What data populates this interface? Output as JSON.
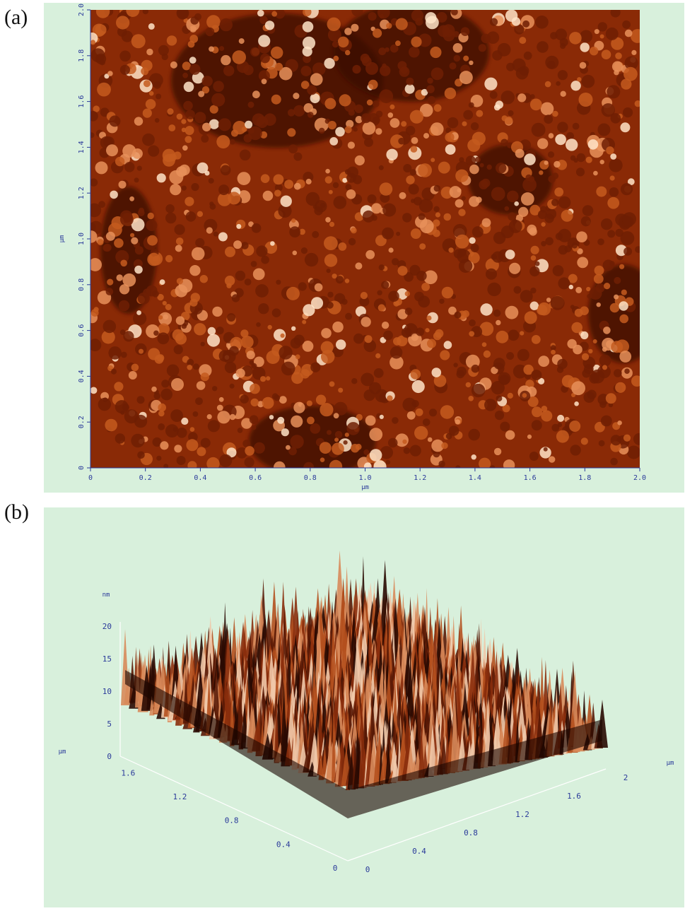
{
  "panels": {
    "a": {
      "label": "(a)",
      "x_ticks": [
        "0",
        "0.2",
        "0.4",
        "0.6",
        "0.8",
        "1.0",
        "1.2",
        "1.4",
        "1.6",
        "1.8",
        "2.0"
      ],
      "y_ticks": [
        "0",
        "0.2",
        "0.4",
        "0.6",
        "0.8",
        "1.0",
        "1.2",
        "1.4",
        "1.6",
        "1.8",
        "2.0"
      ],
      "x_unit": "μm",
      "y_unit": "μm"
    },
    "b": {
      "label": "(b)",
      "z_ticks": [
        "0",
        "5",
        "10",
        "15",
        "20"
      ],
      "z_unit": "nm",
      "left_axis_ticks": [
        "0",
        "0.4",
        "0.8",
        "1.2",
        "1.6"
      ],
      "right_axis_ticks": [
        "0",
        "0.4",
        "0.8",
        "1.2",
        "1.6",
        "2"
      ],
      "left_unit": "μm",
      "right_unit": "μm"
    }
  },
  "colors": {
    "panel_background": "#d8f0dc",
    "axis": "#2a3a9a",
    "surface_dark": "#3a0d02",
    "surface_mid": "#a8380c",
    "surface_light": "#f2c8a0"
  }
}
